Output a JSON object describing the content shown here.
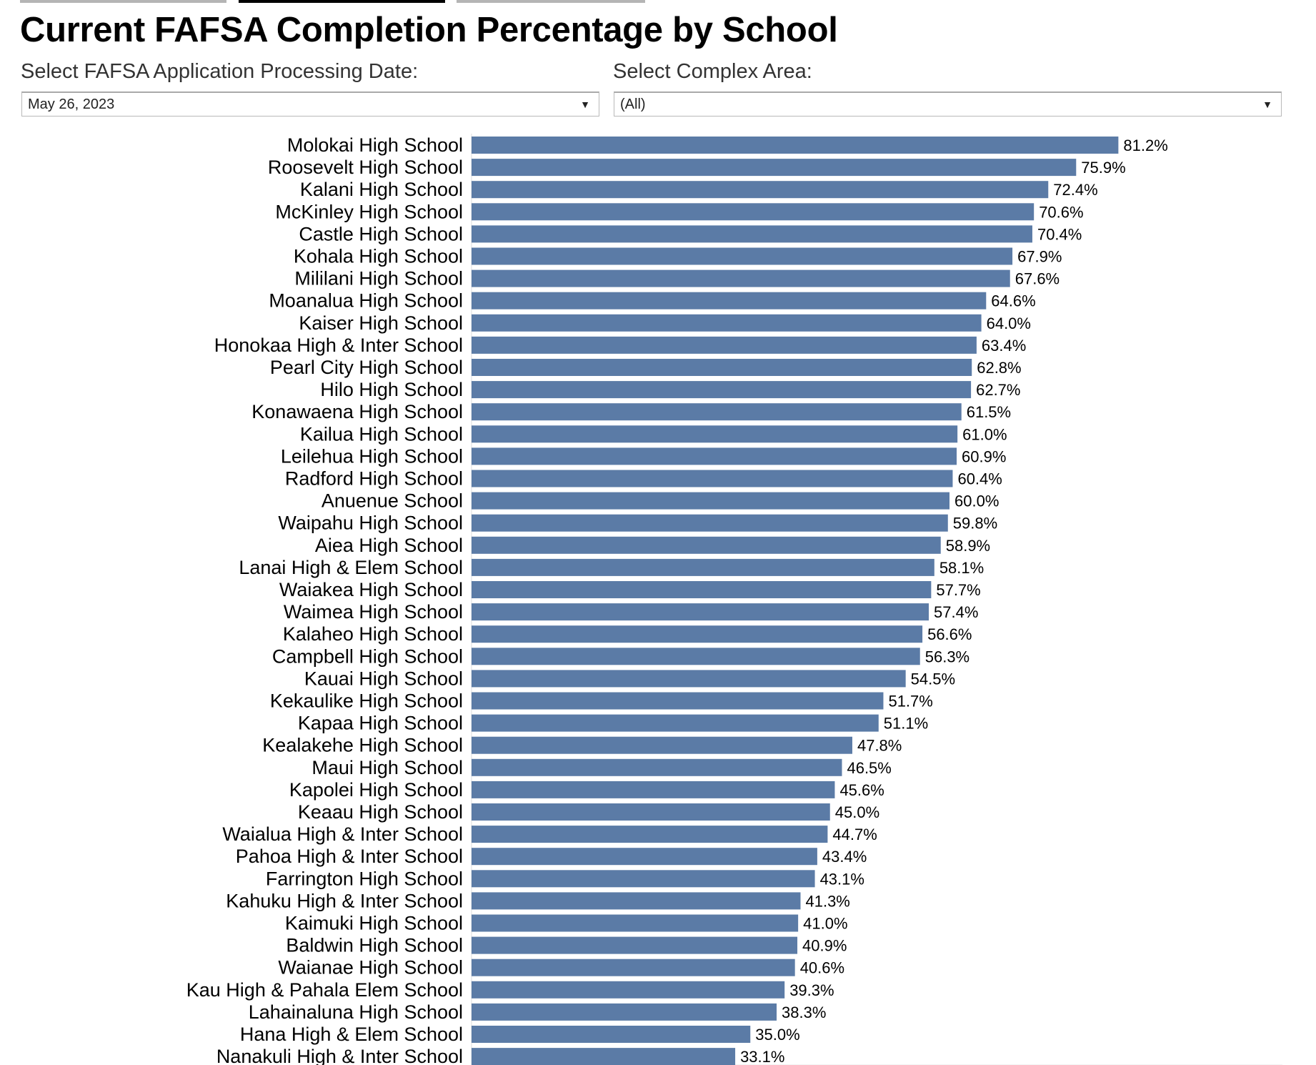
{
  "tabs": [
    {
      "state": "inactive",
      "color": "#b5b5b5"
    },
    {
      "state": "active",
      "color": "#000000"
    },
    {
      "state": "inactive",
      "color": "#b5b5b5"
    }
  ],
  "title": "Current FAFSA Completion Percentage by School",
  "filters": {
    "date": {
      "label": "Select FAFSA Application Processing Date:",
      "value": "May 26, 2023"
    },
    "complex": {
      "label": "Select Complex Area:",
      "value": "(All)"
    }
  },
  "chart_data": {
    "type": "bar",
    "orientation": "horizontal",
    "title": "Current FAFSA Completion Percentage by School",
    "xlim": [
      0,
      100
    ],
    "grid": true,
    "bar_color": "#5b7ba6",
    "value_format": "percent, 1 decimal",
    "categories": [
      "Molokai High School",
      "Roosevelt High School",
      "Kalani High School",
      "McKinley High School",
      "Castle High School",
      "Kohala High School",
      "Mililani High School",
      "Moanalua High School",
      "Kaiser High School",
      "Honokaa High & Inter School",
      "Pearl City High School",
      "Hilo High School",
      "Konawaena High School",
      "Kailua High School",
      "Leilehua High School",
      "Radford High School",
      "Anuenue School",
      "Waipahu High School",
      "Aiea High School",
      "Lanai High & Elem School",
      "Waiakea High School",
      "Waimea High School",
      "Kalaheo High School",
      "Campbell High School",
      "Kauai High School",
      "Kekaulike High School",
      "Kapaa High School",
      "Kealakehe High School",
      "Maui High School",
      "Kapolei High School",
      "Keaau High School",
      "Waialua High & Inter School",
      "Pahoa High & Inter School",
      "Farrington High School",
      "Kahuku High & Inter School",
      "Kaimuki High School",
      "Baldwin High School",
      "Waianae High School",
      "Kau High & Pahala Elem School",
      "Lahainaluna High School",
      "Hana High & Elem School",
      "Nanakuli High & Inter School"
    ],
    "values": [
      81.2,
      75.9,
      72.4,
      70.6,
      70.4,
      67.9,
      67.6,
      64.6,
      64.0,
      63.4,
      62.8,
      62.7,
      61.5,
      61.0,
      60.9,
      60.4,
      60.0,
      59.8,
      58.9,
      58.1,
      57.7,
      57.4,
      56.6,
      56.3,
      54.5,
      51.7,
      51.1,
      47.8,
      46.5,
      45.6,
      45.0,
      44.7,
      43.4,
      43.1,
      41.3,
      41.0,
      40.9,
      40.6,
      39.3,
      38.3,
      35.0,
      33.1
    ]
  }
}
